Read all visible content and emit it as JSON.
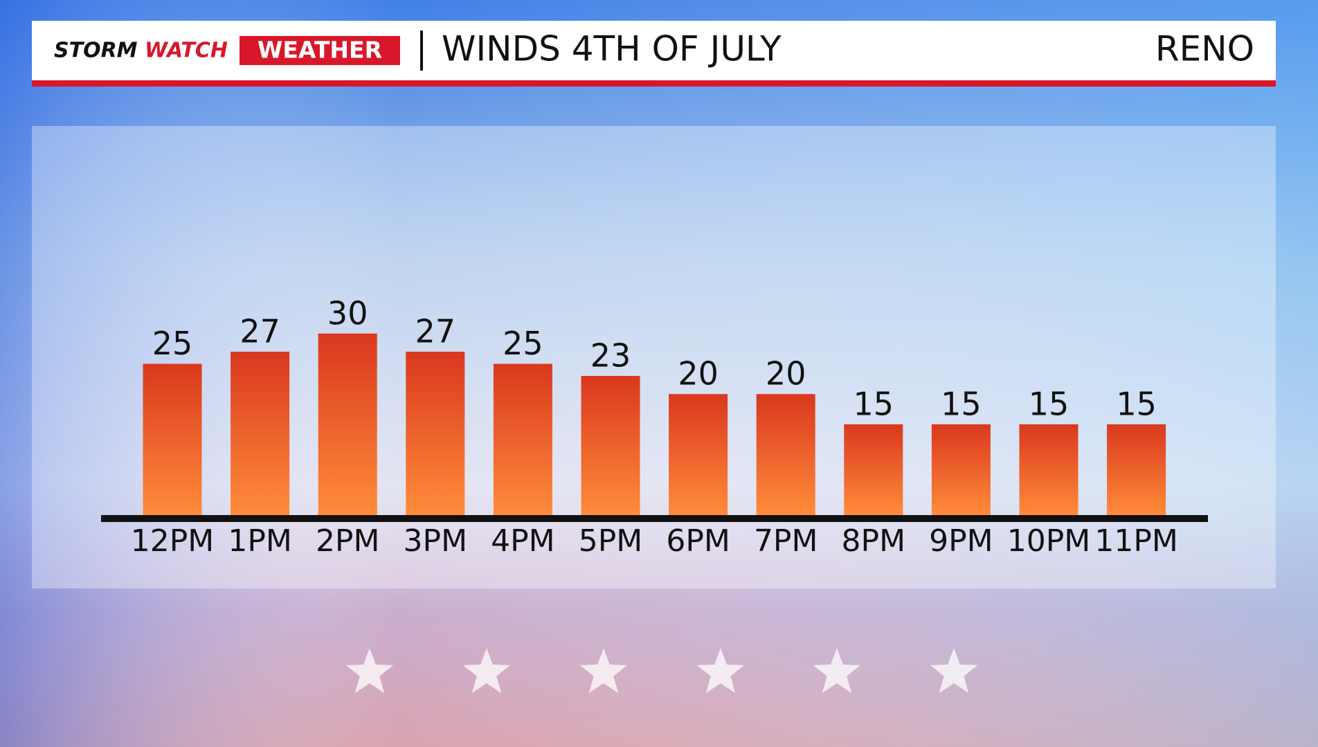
{
  "header": {
    "brand": [
      "STORM",
      "WATCH"
    ],
    "badge": "WEATHER",
    "location": "RENO"
  },
  "chart_data": {
    "type": "bar",
    "title": "WINDS 4TH OF JULY",
    "categories": [
      "12PM",
      "1PM",
      "2PM",
      "3PM",
      "4PM",
      "5PM",
      "6PM",
      "7PM",
      "8PM",
      "9PM",
      "10PM",
      "11PM"
    ],
    "values": [
      25,
      27,
      30,
      27,
      25,
      23,
      20,
      20,
      15,
      15,
      15,
      15
    ],
    "color": [
      "#d9381e",
      "#ff8c3a"
    ]
  }
}
